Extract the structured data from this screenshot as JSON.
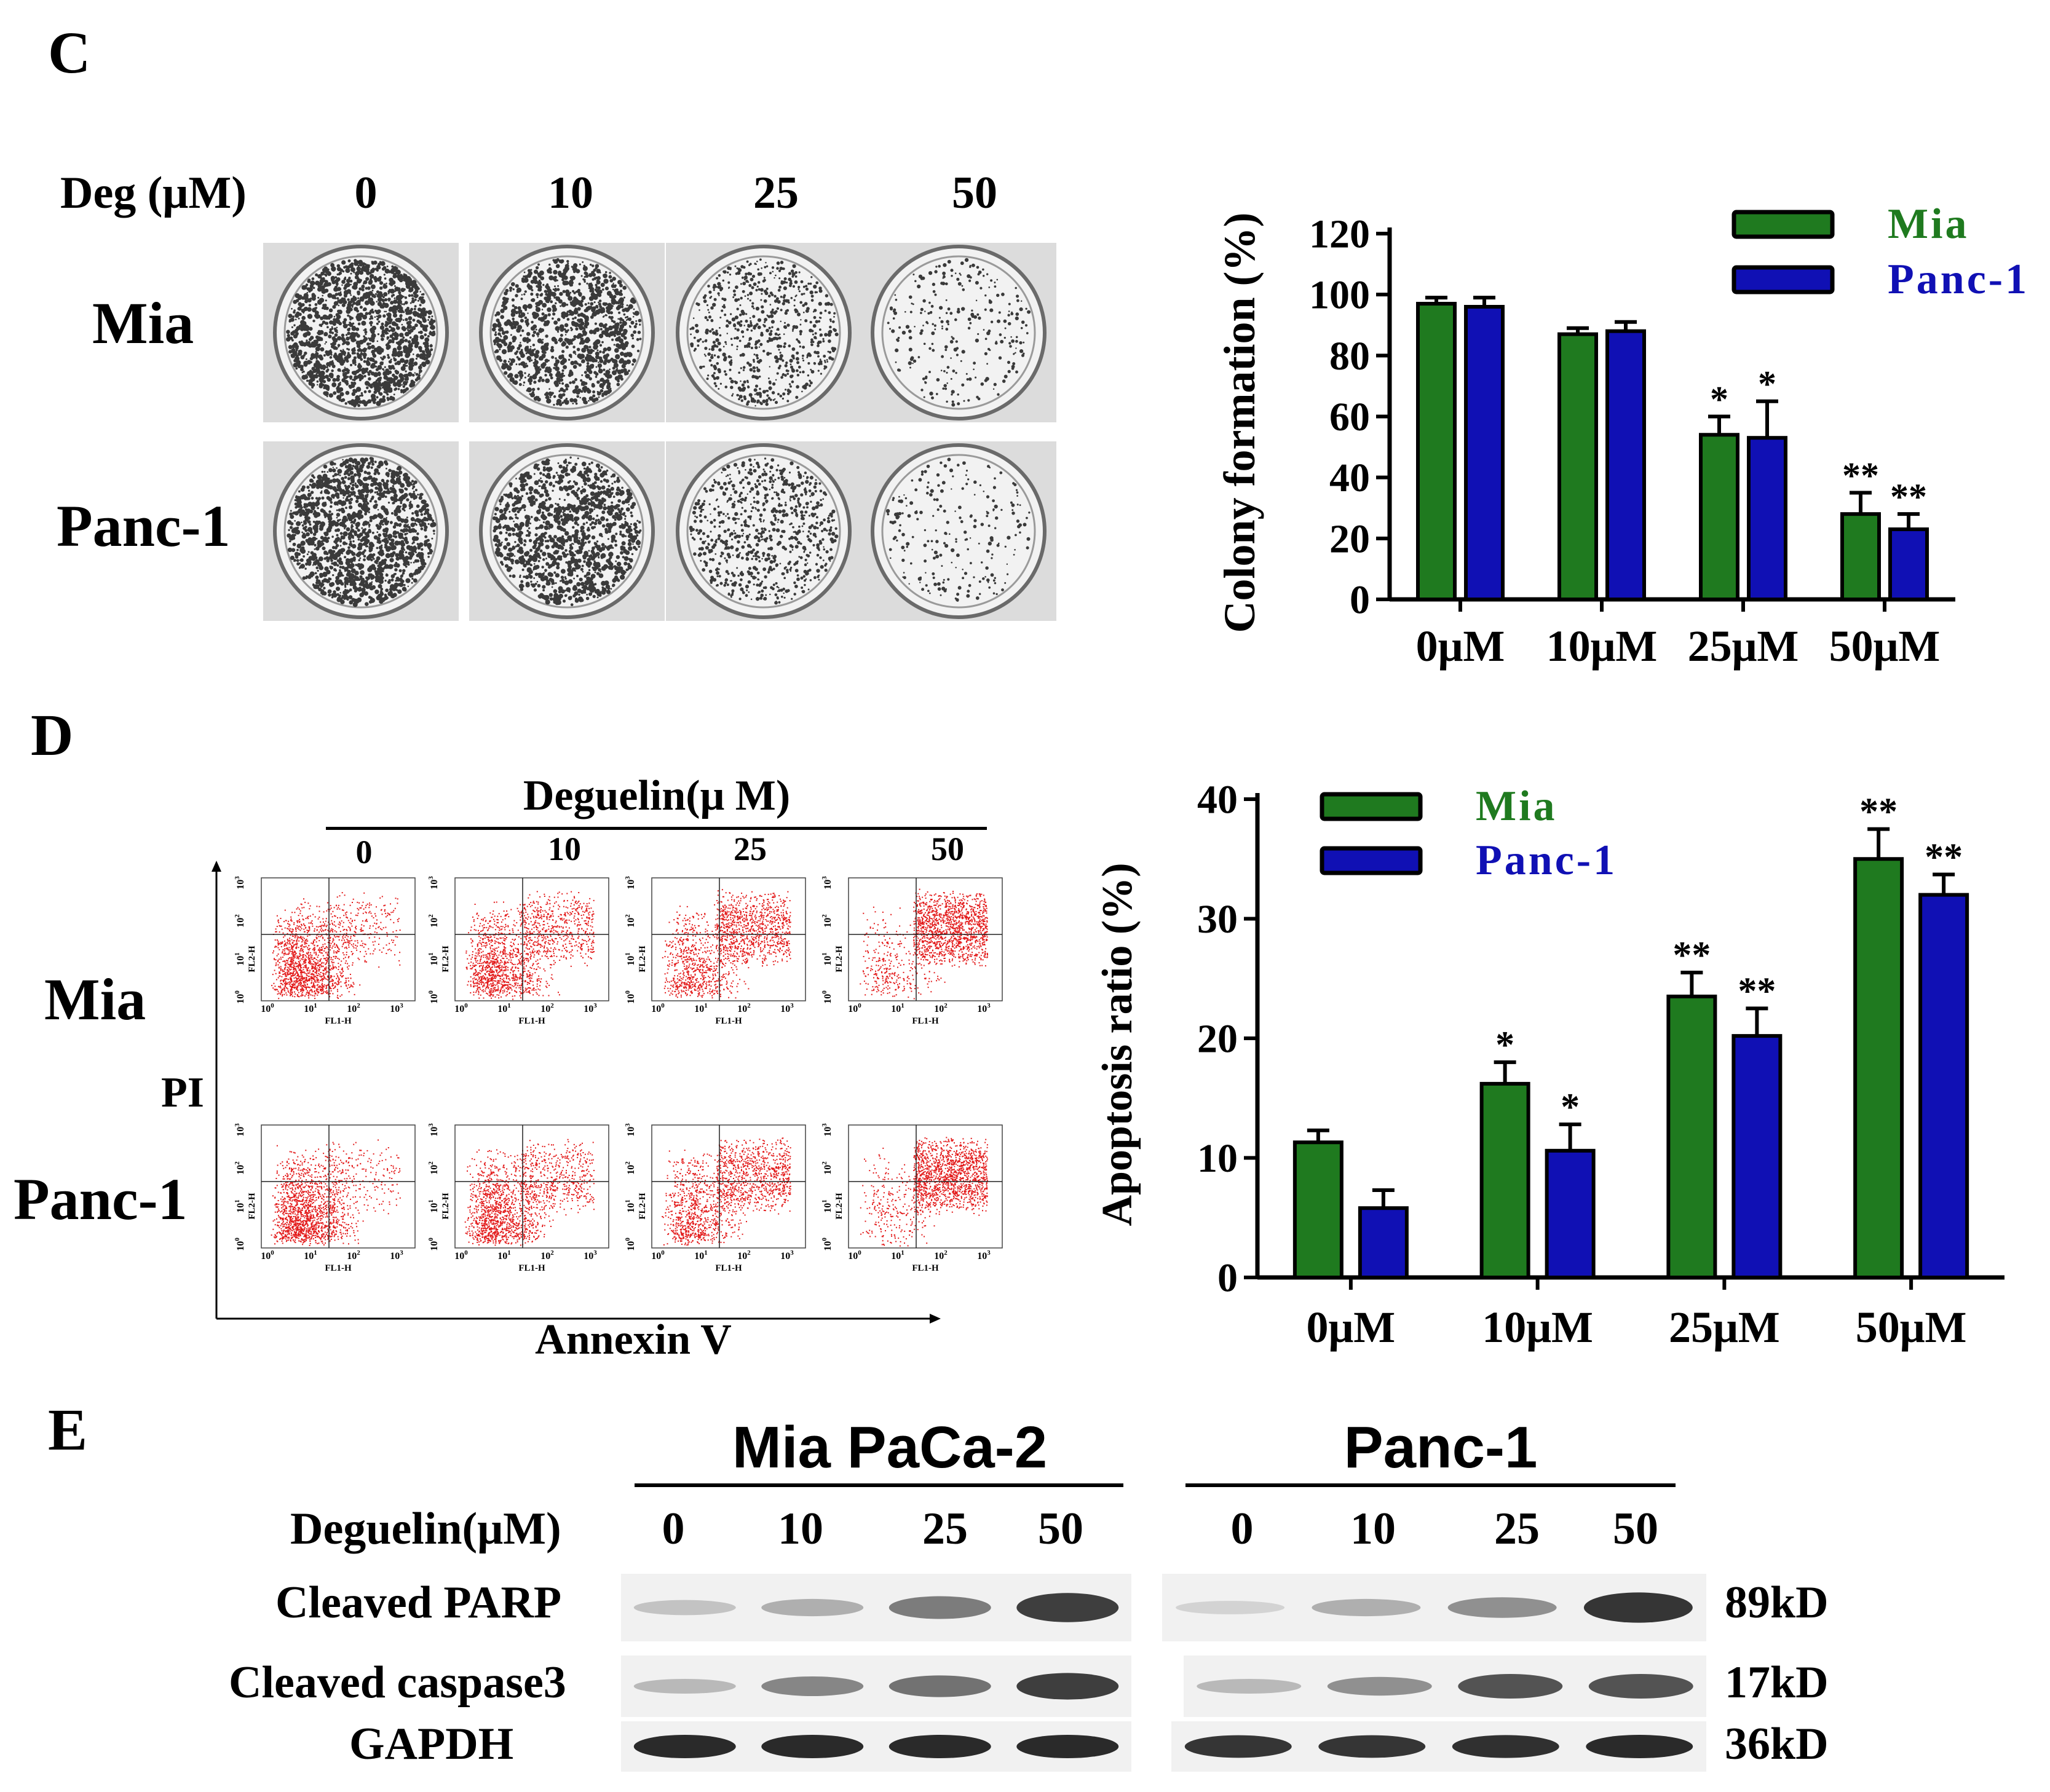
{
  "panel_c": {
    "letter": "C",
    "dose_header": "Deg (μM)",
    "doses": [
      "0",
      "10",
      "25",
      "50"
    ],
    "rows": [
      "Mia",
      "Panc-1"
    ],
    "dish_density": [
      [
        1.0,
        0.75,
        0.45,
        0.15
      ],
      [
        1.0,
        0.8,
        0.5,
        0.12
      ]
    ]
  },
  "panel_d": {
    "letter": "D",
    "treatment_header": "Deguelin(μ M)",
    "doses": [
      "0",
      "10",
      "25",
      "50"
    ],
    "rows": [
      "Mia",
      "Panc-1"
    ],
    "y_axis_label": "PI",
    "x_axis_label": "Annexin V",
    "facs_y_label": "FL2-H",
    "facs_x_label": "FL1-H",
    "facs_ticks": [
      "10",
      "0",
      "1",
      "2",
      "3"
    ],
    "facs_upper_right_density": [
      [
        0.15,
        0.35,
        0.55,
        0.8
      ],
      [
        0.12,
        0.3,
        0.5,
        0.85
      ]
    ]
  },
  "panel_e": {
    "letter": "E",
    "groups": [
      "Mia PaCa-2",
      "Panc-1"
    ],
    "treatment_label": "Deguelin(μM)",
    "doses": [
      "0",
      "10",
      "25",
      "50",
      "0",
      "10",
      "25",
      "50"
    ],
    "proteins": [
      {
        "name": "Cleaved PARP",
        "size": "89kD",
        "intensities": [
          0.2,
          0.3,
          0.55,
          0.85,
          0.12,
          0.3,
          0.45,
          0.9
        ]
      },
      {
        "name": "Cleaved caspase3",
        "size": "17kD",
        "intensities": [
          0.25,
          0.5,
          0.6,
          0.85,
          0.25,
          0.45,
          0.75,
          0.75
        ]
      },
      {
        "name": "GAPDH",
        "size": "36kD",
        "intensities": [
          0.95,
          0.95,
          0.95,
          0.95,
          0.9,
          0.9,
          0.92,
          0.95
        ]
      }
    ]
  },
  "chart_data": [
    {
      "type": "bar",
      "title": "",
      "xlabel": "",
      "ylabel": "Colony formation (%)",
      "categories": [
        "0μM",
        "10μM",
        "25μM",
        "50μM"
      ],
      "ylim": [
        0,
        120
      ],
      "yticks": [
        "0",
        "20",
        "40",
        "60",
        "80",
        "100",
        "120"
      ],
      "legend_position": "top-right",
      "series": [
        {
          "name": "Mia",
          "color": "#1f7a1f",
          "values": [
            97,
            87,
            54,
            28
          ],
          "errors": [
            2,
            2,
            6,
            7
          ],
          "significance": [
            "",
            "",
            "*",
            "**"
          ]
        },
        {
          "name": "Panc-1",
          "color": "#1010b4",
          "values": [
            96,
            88,
            53,
            23
          ],
          "errors": [
            3,
            3,
            12,
            5
          ],
          "significance": [
            "",
            "",
            "*",
            "**"
          ]
        }
      ]
    },
    {
      "type": "bar",
      "title": "",
      "xlabel": "",
      "ylabel": "Apoptosis ratio (%)",
      "categories": [
        "0μM",
        "10μM",
        "25μM",
        "50μM"
      ],
      "ylim": [
        0,
        40
      ],
      "yticks": [
        "0",
        "10",
        "20",
        "30",
        "40"
      ],
      "legend_position": "top-left",
      "series": [
        {
          "name": "Mia",
          "color": "#1f7a1f",
          "values": [
            11.3,
            16.2,
            23.5,
            35
          ],
          "errors": [
            1,
            1.8,
            2,
            2.5
          ],
          "significance": [
            "",
            "*",
            "**",
            "**"
          ]
        },
        {
          "name": "Panc-1",
          "color": "#1010b4",
          "values": [
            5.8,
            10.6,
            20.2,
            32
          ],
          "errors": [
            1.5,
            2.2,
            2.3,
            1.7
          ],
          "significance": [
            "",
            "*",
            "**",
            "**"
          ]
        }
      ]
    }
  ]
}
